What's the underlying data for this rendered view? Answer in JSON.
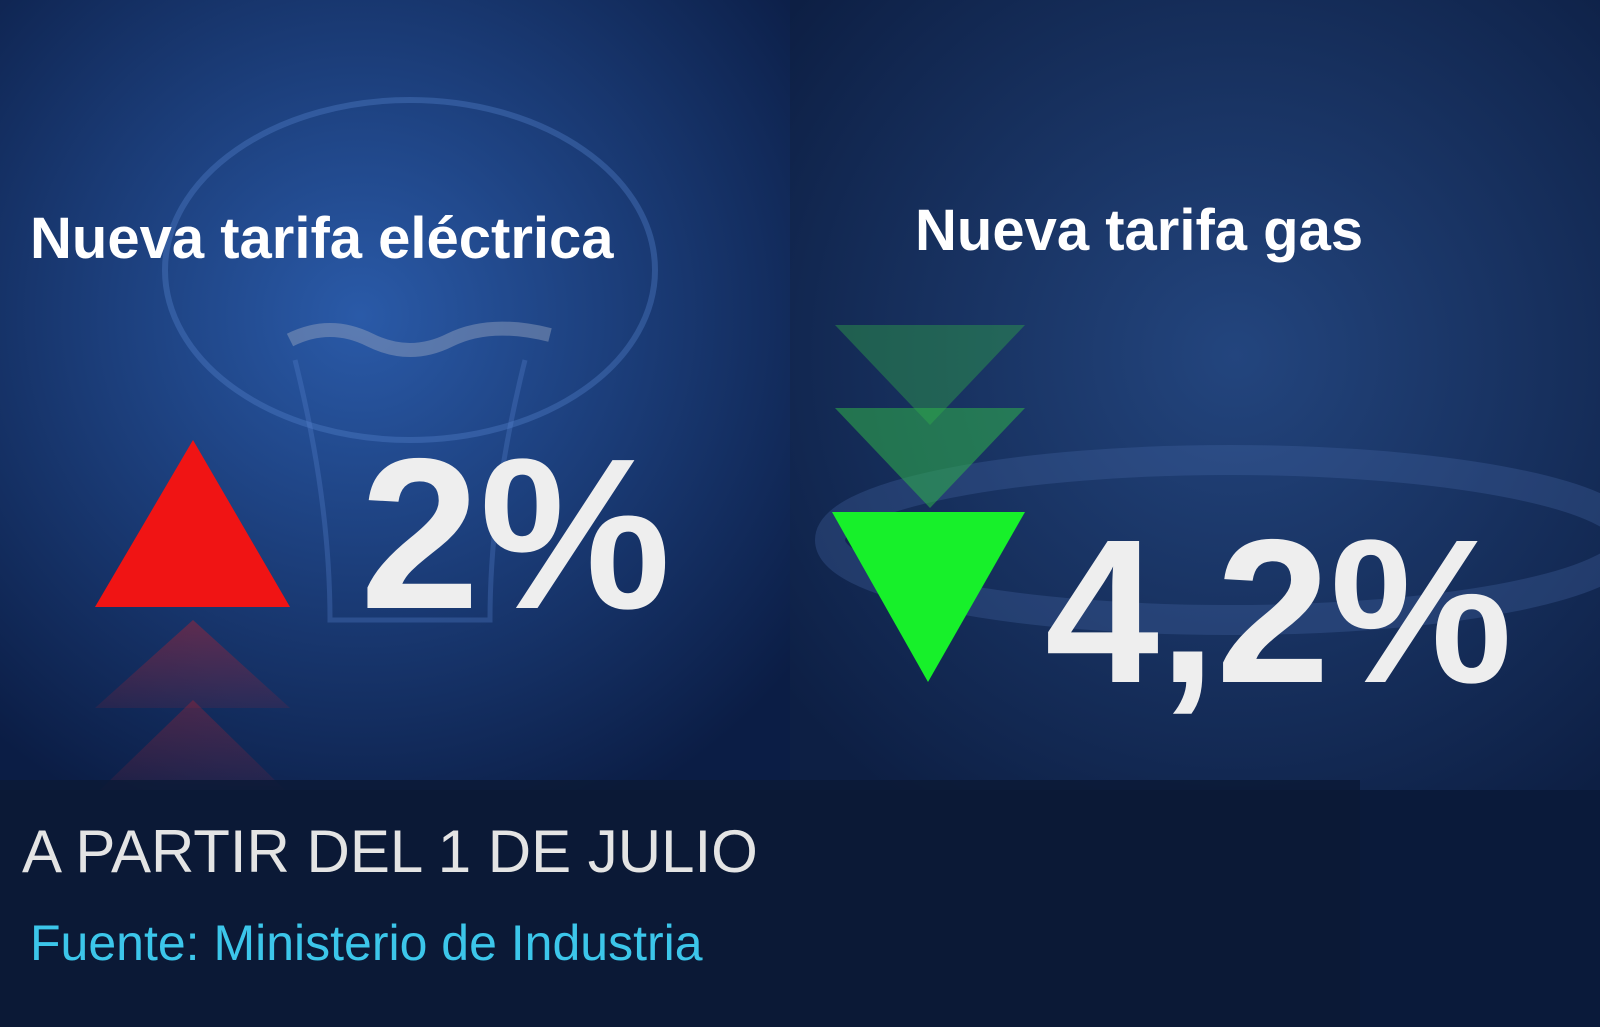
{
  "panels": [
    {
      "title": "Nueva tarifa eléctrica",
      "value": "2%"
    },
    {
      "title": "Nueva tarifa gas",
      "value": "4,2%"
    }
  ],
  "footer": {
    "date": "A PARTIR DEL 1 DE JULIO",
    "source": "Fuente: Ministerio de Industria"
  }
}
